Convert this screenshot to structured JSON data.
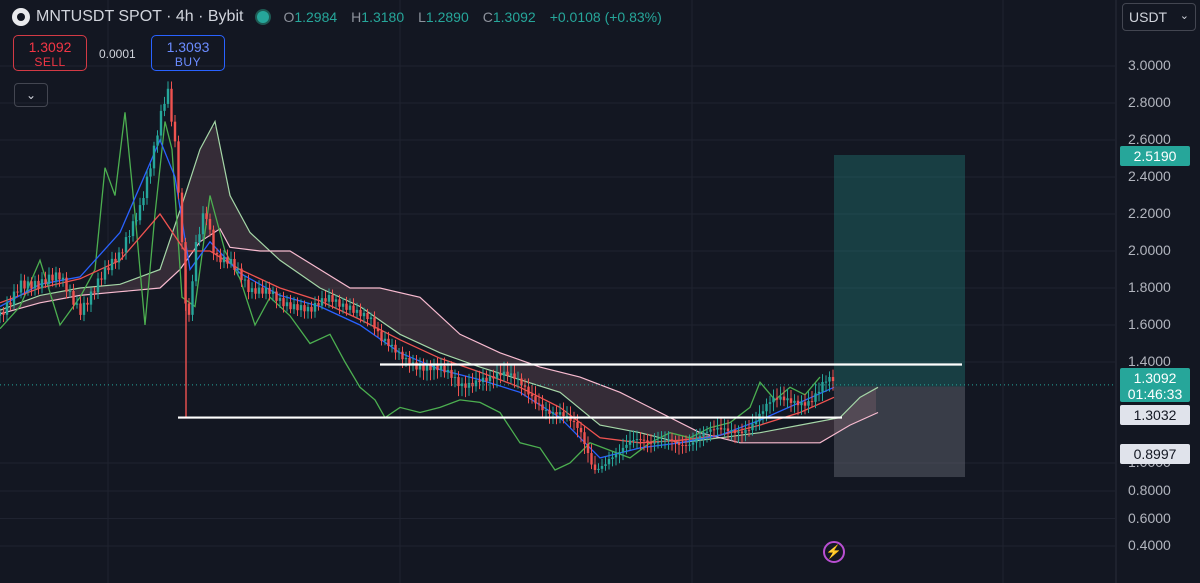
{
  "header": {
    "title": "MNTUSDT SPOT · 4h · Bybit",
    "ohlc": [
      {
        "k": "O",
        "v": "1.2984"
      },
      {
        "k": "H",
        "v": "1.3180"
      },
      {
        "k": "L",
        "v": "1.2890"
      },
      {
        "k": "C",
        "v": "1.3092"
      }
    ],
    "change": "+0.0108 (+0.83%)"
  },
  "trade": {
    "sell_price": "1.3092",
    "sell_label": "SELL",
    "buy_price": "1.3093",
    "buy_label": "BUY",
    "spread": "0.0001"
  },
  "currency": "USDT",
  "price_tags": {
    "target": "2.5190",
    "current": "1.3092",
    "countdown": "01:46:33",
    "entry": "1.3032",
    "stop": "0.8997"
  },
  "colors": {
    "background": "#131722",
    "up": "#26a69a",
    "down": "#ef5350",
    "lagging_span": "#4caf50",
    "conversion_line": "#2962ff",
    "base_line": "#ef5350",
    "span_a": "#a5d6a7",
    "span_b": "#f8bbd0",
    "target_zone": "#26a69a",
    "stop_zone": "#787b86"
  },
  "chart_data": {
    "type": "candlestick",
    "timeframe": "4h",
    "y_axis_ticks": [
      "3.0000",
      "2.8000",
      "2.6000",
      "2.4000",
      "2.2000",
      "2.0000",
      "1.8000",
      "1.6000",
      "1.4000",
      "1.0000",
      "0.8000",
      "0.6000",
      "0.4000"
    ],
    "ylim": [
      0.34,
      3.18
    ],
    "x_range": [
      0,
      1000
    ],
    "close_series": [
      [
        0,
        1.65
      ],
      [
        20,
        1.85
      ],
      [
        40,
        1.8
      ],
      [
        60,
        1.85
      ],
      [
        80,
        1.7
      ],
      [
        100,
        1.85
      ],
      [
        120,
        1.95
      ],
      [
        140,
        2.25
      ],
      [
        155,
        2.6
      ],
      [
        163,
        2.8
      ],
      [
        168,
        2.85
      ],
      [
        175,
        2.55
      ],
      [
        180,
        2.2
      ],
      [
        184,
        1.8
      ],
      [
        188,
        1.55
      ],
      [
        195,
        2.0
      ],
      [
        205,
        2.25
      ],
      [
        215,
        2.0
      ],
      [
        230,
        1.95
      ],
      [
        250,
        1.75
      ],
      [
        270,
        1.8
      ],
      [
        290,
        1.72
      ],
      [
        310,
        1.65
      ],
      [
        330,
        1.75
      ],
      [
        350,
        1.72
      ],
      [
        370,
        1.62
      ],
      [
        380,
        1.5
      ],
      [
        400,
        1.45
      ],
      [
        420,
        1.4
      ],
      [
        440,
        1.35
      ],
      [
        460,
        1.3
      ],
      [
        480,
        1.36
      ],
      [
        500,
        1.34
      ],
      [
        520,
        1.3
      ],
      [
        540,
        1.25
      ],
      [
        560,
        1.2
      ],
      [
        580,
        1.1
      ],
      [
        595,
        0.95
      ],
      [
        610,
        1.05
      ],
      [
        630,
        1.08
      ],
      [
        650,
        1.05
      ],
      [
        670,
        1.12
      ],
      [
        690,
        1.08
      ],
      [
        710,
        1.1
      ],
      [
        730,
        1.14
      ],
      [
        750,
        1.16
      ],
      [
        770,
        1.22
      ],
      [
        790,
        1.24
      ],
      [
        810,
        1.27
      ],
      [
        825,
        1.33
      ],
      [
        834,
        1.31
      ]
    ],
    "lagging_span": [
      [
        0,
        1.58
      ],
      [
        20,
        1.7
      ],
      [
        40,
        1.95
      ],
      [
        60,
        1.6
      ],
      [
        80,
        1.75
      ],
      [
        95,
        1.9
      ],
      [
        105,
        2.45
      ],
      [
        115,
        2.3
      ],
      [
        125,
        2.75
      ],
      [
        135,
        2.2
      ],
      [
        145,
        1.6
      ],
      [
        155,
        2.2
      ],
      [
        165,
        2.7
      ],
      [
        172,
        2.55
      ],
      [
        182,
        1.75
      ],
      [
        195,
        1.7
      ],
      [
        210,
        2.3
      ],
      [
        225,
        2.0
      ],
      [
        240,
        1.85
      ],
      [
        255,
        1.6
      ],
      [
        270,
        1.75
      ],
      [
        290,
        1.65
      ],
      [
        310,
        1.5
      ],
      [
        330,
        1.55
      ],
      [
        345,
        1.4
      ],
      [
        360,
        1.3
      ],
      [
        375,
        1.25
      ],
      [
        385,
        1.18
      ],
      [
        400,
        1.22
      ],
      [
        420,
        1.2
      ],
      [
        440,
        1.22
      ],
      [
        460,
        1.25
      ],
      [
        480,
        1.24
      ],
      [
        500,
        1.2
      ],
      [
        520,
        1.08
      ],
      [
        540,
        1.06
      ],
      [
        555,
        0.95
      ],
      [
        570,
        1.0
      ],
      [
        590,
        1.08
      ],
      [
        610,
        1.05
      ],
      [
        630,
        1.02
      ],
      [
        650,
        1.08
      ],
      [
        670,
        1.12
      ],
      [
        690,
        1.1
      ],
      [
        710,
        1.14
      ],
      [
        730,
        1.16
      ],
      [
        750,
        1.22
      ],
      [
        760,
        1.32
      ],
      [
        775,
        1.25
      ],
      [
        790,
        1.3
      ],
      [
        805,
        1.27
      ],
      [
        820,
        1.34
      ]
    ],
    "conversion_line": [
      [
        0,
        1.7
      ],
      [
        40,
        1.82
      ],
      [
        80,
        1.86
      ],
      [
        120,
        2.1
      ],
      [
        160,
        2.6
      ],
      [
        175,
        2.4
      ],
      [
        190,
        1.9
      ],
      [
        210,
        2.05
      ],
      [
        240,
        1.88
      ],
      [
        280,
        1.76
      ],
      [
        320,
        1.7
      ],
      [
        360,
        1.6
      ],
      [
        400,
        1.45
      ],
      [
        440,
        1.37
      ],
      [
        480,
        1.33
      ],
      [
        520,
        1.28
      ],
      [
        560,
        1.18
      ],
      [
        600,
        1.02
      ],
      [
        640,
        1.06
      ],
      [
        680,
        1.08
      ],
      [
        720,
        1.11
      ],
      [
        760,
        1.17
      ],
      [
        800,
        1.24
      ],
      [
        834,
        1.3
      ]
    ],
    "base_line": [
      [
        0,
        1.72
      ],
      [
        40,
        1.8
      ],
      [
        80,
        1.85
      ],
      [
        120,
        1.95
      ],
      [
        160,
        2.2
      ],
      [
        185,
        2.0
      ],
      [
        210,
        2.0
      ],
      [
        240,
        1.9
      ],
      [
        280,
        1.8
      ],
      [
        320,
        1.73
      ],
      [
        360,
        1.63
      ],
      [
        400,
        1.52
      ],
      [
        440,
        1.42
      ],
      [
        480,
        1.36
      ],
      [
        520,
        1.3
      ],
      [
        560,
        1.22
      ],
      [
        600,
        1.1
      ],
      [
        640,
        1.08
      ],
      [
        680,
        1.09
      ],
      [
        720,
        1.11
      ],
      [
        760,
        1.15
      ],
      [
        800,
        1.2
      ],
      [
        834,
        1.26
      ]
    ],
    "span_a": [
      [
        0,
        1.68
      ],
      [
        40,
        1.76
      ],
      [
        80,
        1.8
      ],
      [
        120,
        1.82
      ],
      [
        160,
        1.9
      ],
      [
        185,
        2.3
      ],
      [
        200,
        2.55
      ],
      [
        215,
        2.7
      ],
      [
        230,
        2.3
      ],
      [
        250,
        2.1
      ],
      [
        280,
        1.95
      ],
      [
        320,
        1.8
      ],
      [
        360,
        1.7
      ],
      [
        400,
        1.55
      ],
      [
        440,
        1.45
      ],
      [
        480,
        1.38
      ],
      [
        520,
        1.33
      ],
      [
        560,
        1.28
      ],
      [
        600,
        1.15
      ],
      [
        640,
        1.12
      ],
      [
        680,
        1.08
      ],
      [
        720,
        1.1
      ],
      [
        760,
        1.12
      ],
      [
        800,
        1.15
      ],
      [
        840,
        1.18
      ],
      [
        860,
        1.26
      ],
      [
        878,
        1.3
      ]
    ],
    "span_b": [
      [
        0,
        1.66
      ],
      [
        40,
        1.72
      ],
      [
        80,
        1.76
      ],
      [
        120,
        1.78
      ],
      [
        160,
        1.8
      ],
      [
        180,
        1.9
      ],
      [
        200,
        2.05
      ],
      [
        220,
        2.12
      ],
      [
        230,
        2.02
      ],
      [
        260,
        2.0
      ],
      [
        290,
        2.0
      ],
      [
        320,
        1.9
      ],
      [
        350,
        1.8
      ],
      [
        380,
        1.8
      ],
      [
        420,
        1.75
      ],
      [
        460,
        1.55
      ],
      [
        500,
        1.45
      ],
      [
        540,
        1.38
      ],
      [
        580,
        1.34
      ],
      [
        620,
        1.28
      ],
      [
        660,
        1.2
      ],
      [
        700,
        1.12
      ],
      [
        740,
        1.08
      ],
      [
        780,
        1.08
      ],
      [
        820,
        1.08
      ],
      [
        850,
        1.15
      ],
      [
        878,
        1.2
      ]
    ],
    "horizontal_levels": [
      {
        "price": 1.39,
        "x_start": 380,
        "x_end": 962
      },
      {
        "price": 1.18,
        "x_start": 178,
        "x_end": 842
      }
    ],
    "position": {
      "entry": 1.3032,
      "target": 2.519,
      "stop": 0.8997,
      "x_start": 834,
      "x_end": 965
    },
    "wick_low": {
      "x": 186,
      "price": 1.18
    }
  }
}
